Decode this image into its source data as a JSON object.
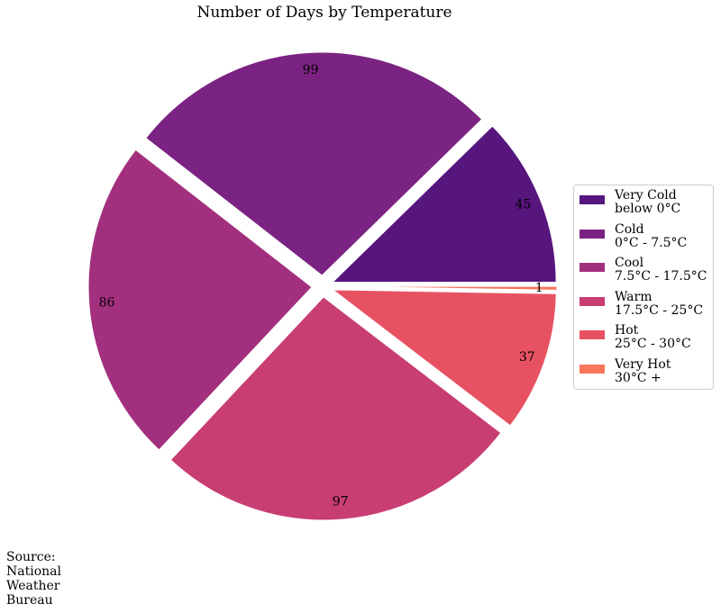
{
  "chart_data": {
    "type": "pie",
    "title": "Number of Days by Temperature",
    "categories": [
      "Very Cold\n below 0°C",
      "Cold\n0°C - 7.5°C",
      "Cool\n7.5°C - 17.5°C",
      "Warm\n17.5°C - 25°C",
      "Hot\n25°C - 30°C",
      "Very Hot\n30°C +"
    ],
    "values": [
      45,
      99,
      86,
      97,
      37,
      1
    ],
    "labels": [
      "45",
      "99",
      "86",
      "97",
      "37",
      "1"
    ],
    "colors": [
      "#57157e",
      "#7b2382",
      "#a3307e",
      "#c83e73",
      "#e75263",
      "#f8765c"
    ],
    "legend_position": "right"
  },
  "source_note": "Source:\nNational\nWeather\nBureau"
}
